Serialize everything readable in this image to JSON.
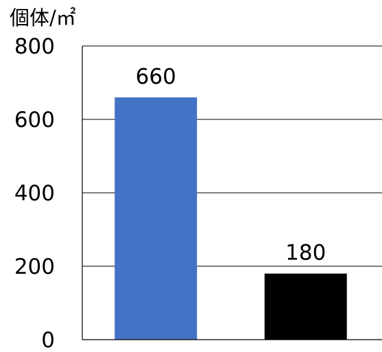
{
  "chart_data": {
    "type": "bar",
    "ylabel": "個体/㎡",
    "ylim": [
      0,
      800
    ],
    "yticks": [
      0,
      200,
      400,
      600,
      800
    ],
    "ytick_labels": [
      "0",
      "200",
      "400",
      "600",
      "800"
    ],
    "grid": true,
    "legend": "none",
    "categories": [
      "",
      ""
    ],
    "series": [
      {
        "values": [
          660,
          180
        ],
        "data_labels": [
          "660",
          "180"
        ],
        "colors": [
          "#4472c4",
          "#000000"
        ]
      }
    ]
  }
}
